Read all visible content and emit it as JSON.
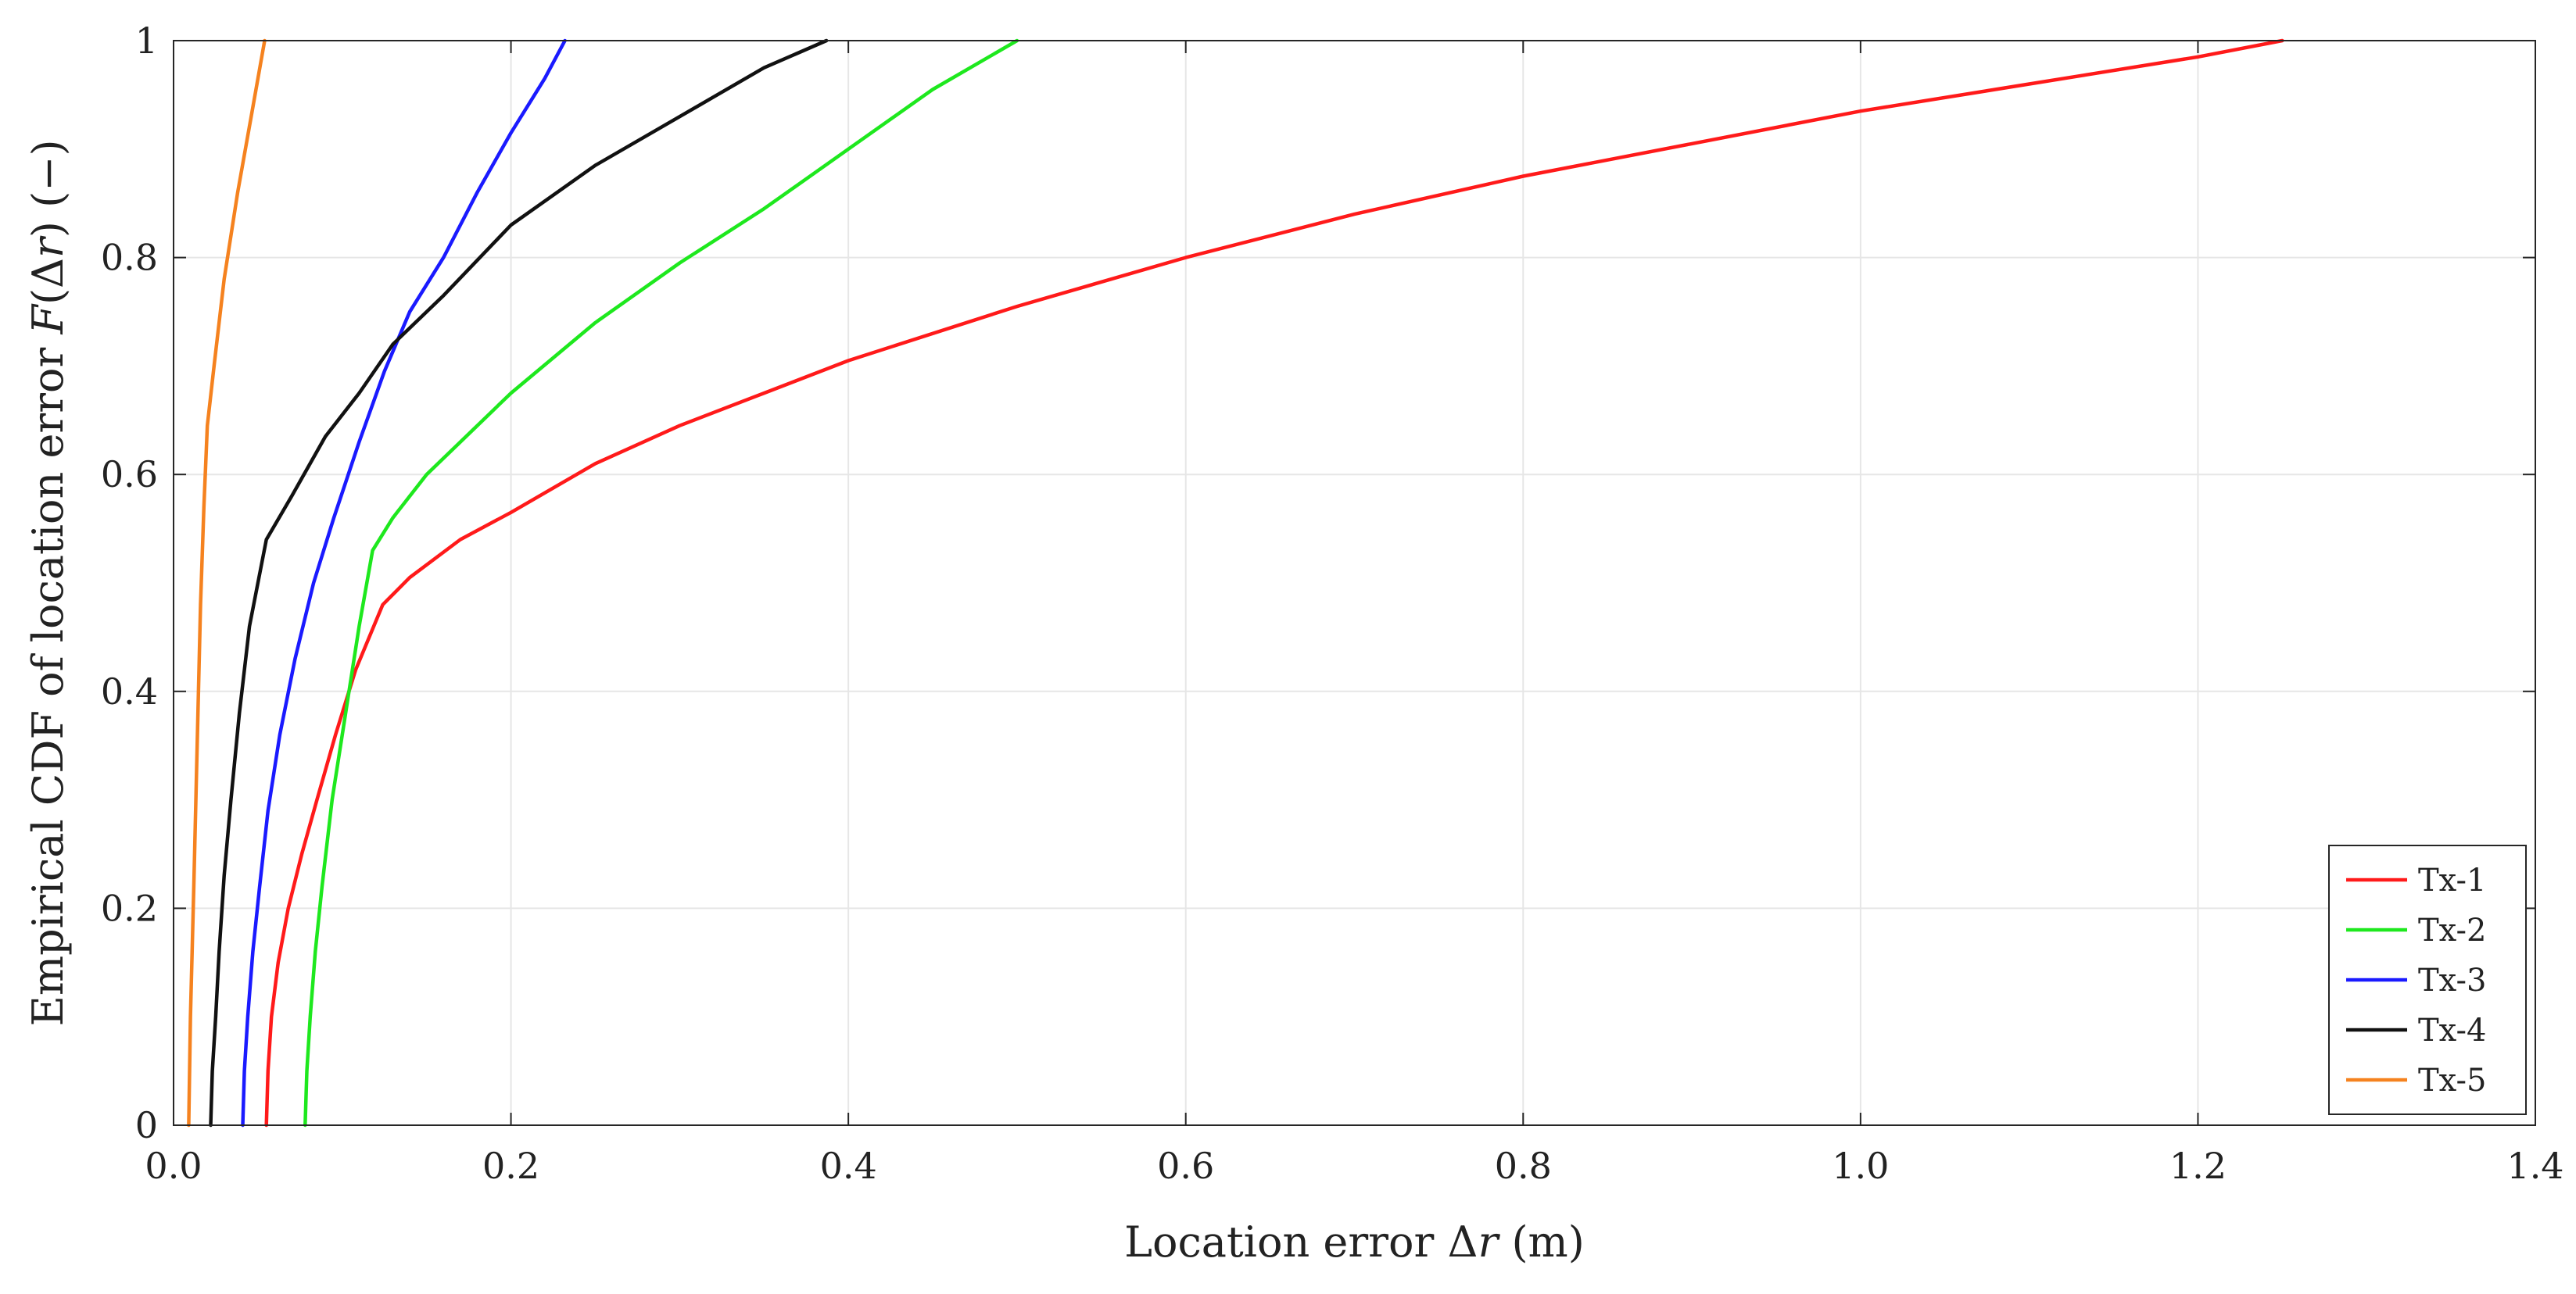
{
  "chart_data": {
    "type": "line",
    "title": "",
    "xlabel": {
      "prefix": "Location error ",
      "symbol_delta": "Δ",
      "symbol_var": "r",
      "suffix": " (m)"
    },
    "ylabel": {
      "prefix": "Empirical CDF of location error ",
      "symbol_func": "F",
      "open": "(",
      "symbol_delta": "Δ",
      "symbol_var": "r",
      "close": ")",
      "suffix": " (−)"
    },
    "xlim": [
      0,
      1.4
    ],
    "ylim": [
      0,
      1
    ],
    "x_ticks": [
      0,
      0.2,
      0.4,
      0.6,
      0.8,
      1.0,
      1.2,
      1.4
    ],
    "x_tick_labels": [
      "0.0",
      "0.2",
      "0.4",
      "0.6",
      "0.8",
      "1.0",
      "1.2",
      "1.4"
    ],
    "y_ticks": [
      0,
      0.2,
      0.4,
      0.6,
      0.8,
      1
    ],
    "y_tick_labels": [
      "0",
      "0.2",
      "0.4",
      "0.6",
      "0.8",
      "1"
    ],
    "grid": true,
    "legend_position": "bottom-right",
    "series": [
      {
        "name": "Tx-1",
        "color": "#ff1a1a",
        "points": [
          [
            0.055,
            0
          ],
          [
            0.056,
            0.05
          ],
          [
            0.058,
            0.1
          ],
          [
            0.062,
            0.15
          ],
          [
            0.068,
            0.2
          ],
          [
            0.076,
            0.25
          ],
          [
            0.085,
            0.3
          ],
          [
            0.096,
            0.36
          ],
          [
            0.108,
            0.42
          ],
          [
            0.124,
            0.48
          ],
          [
            0.14,
            0.505
          ],
          [
            0.17,
            0.54
          ],
          [
            0.2,
            0.565
          ],
          [
            0.25,
            0.61
          ],
          [
            0.3,
            0.645
          ],
          [
            0.35,
            0.675
          ],
          [
            0.4,
            0.705
          ],
          [
            0.5,
            0.755
          ],
          [
            0.6,
            0.8
          ],
          [
            0.7,
            0.84
          ],
          [
            0.8,
            0.875
          ],
          [
            0.9,
            0.905
          ],
          [
            1.0,
            0.935
          ],
          [
            1.1,
            0.96
          ],
          [
            1.2,
            0.985
          ],
          [
            1.25,
            1.0
          ]
        ]
      },
      {
        "name": "Tx-2",
        "color": "#1ee81e",
        "points": [
          [
            0.078,
            0
          ],
          [
            0.079,
            0.05
          ],
          [
            0.081,
            0.1
          ],
          [
            0.084,
            0.16
          ],
          [
            0.088,
            0.22
          ],
          [
            0.094,
            0.3
          ],
          [
            0.102,
            0.38
          ],
          [
            0.11,
            0.46
          ],
          [
            0.118,
            0.53
          ],
          [
            0.13,
            0.56
          ],
          [
            0.15,
            0.6
          ],
          [
            0.2,
            0.675
          ],
          [
            0.25,
            0.74
          ],
          [
            0.3,
            0.795
          ],
          [
            0.35,
            0.845
          ],
          [
            0.4,
            0.9
          ],
          [
            0.45,
            0.955
          ],
          [
            0.5,
            1.0
          ]
        ]
      },
      {
        "name": "Tx-3",
        "color": "#1a1aff",
        "points": [
          [
            0.041,
            0
          ],
          [
            0.042,
            0.05
          ],
          [
            0.044,
            0.1
          ],
          [
            0.047,
            0.16
          ],
          [
            0.051,
            0.22
          ],
          [
            0.056,
            0.29
          ],
          [
            0.063,
            0.36
          ],
          [
            0.072,
            0.43
          ],
          [
            0.083,
            0.5
          ],
          [
            0.095,
            0.56
          ],
          [
            0.11,
            0.63
          ],
          [
            0.125,
            0.695
          ],
          [
            0.14,
            0.75
          ],
          [
            0.16,
            0.8
          ],
          [
            0.18,
            0.86
          ],
          [
            0.2,
            0.915
          ],
          [
            0.22,
            0.965
          ],
          [
            0.232,
            1.0
          ]
        ]
      },
      {
        "name": "Tx-4",
        "color": "#111111",
        "points": [
          [
            0.022,
            0
          ],
          [
            0.023,
            0.05
          ],
          [
            0.025,
            0.1
          ],
          [
            0.027,
            0.16
          ],
          [
            0.03,
            0.23
          ],
          [
            0.034,
            0.3
          ],
          [
            0.039,
            0.38
          ],
          [
            0.045,
            0.46
          ],
          [
            0.055,
            0.54
          ],
          [
            0.07,
            0.58
          ],
          [
            0.09,
            0.635
          ],
          [
            0.11,
            0.675
          ],
          [
            0.13,
            0.72
          ],
          [
            0.16,
            0.765
          ],
          [
            0.2,
            0.83
          ],
          [
            0.25,
            0.885
          ],
          [
            0.3,
            0.93
          ],
          [
            0.35,
            0.975
          ],
          [
            0.387,
            1.0
          ]
        ]
      },
      {
        "name": "Tx-5",
        "color": "#f5821f",
        "points": [
          [
            0.009,
            0
          ],
          [
            0.01,
            0.1
          ],
          [
            0.012,
            0.22
          ],
          [
            0.014,
            0.35
          ],
          [
            0.016,
            0.48
          ],
          [
            0.018,
            0.57
          ],
          [
            0.02,
            0.645
          ],
          [
            0.024,
            0.7
          ],
          [
            0.03,
            0.78
          ],
          [
            0.038,
            0.86
          ],
          [
            0.046,
            0.93
          ],
          [
            0.054,
            1.0
          ]
        ]
      }
    ]
  }
}
